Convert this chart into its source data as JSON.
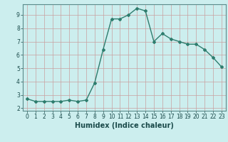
{
  "x": [
    0,
    1,
    2,
    3,
    4,
    5,
    6,
    7,
    8,
    9,
    10,
    11,
    12,
    13,
    14,
    15,
    16,
    17,
    18,
    19,
    20,
    21,
    22,
    23
  ],
  "y": [
    2.7,
    2.5,
    2.5,
    2.5,
    2.5,
    2.6,
    2.5,
    2.6,
    3.9,
    6.4,
    8.7,
    8.7,
    9.0,
    9.5,
    9.3,
    7.0,
    7.6,
    7.2,
    7.0,
    6.8,
    6.8,
    6.4,
    5.8,
    5.1
  ],
  "line_color": "#2e7d6e",
  "marker": "D",
  "markersize": 2.0,
  "linewidth": 1.0,
  "xlabel": "Humidex (Indice chaleur)",
  "xlim": [
    -0.5,
    23.5
  ],
  "ylim": [
    1.8,
    9.8
  ],
  "yticks": [
    2,
    3,
    4,
    5,
    6,
    7,
    8,
    9
  ],
  "xticks": [
    0,
    1,
    2,
    3,
    4,
    5,
    6,
    7,
    8,
    9,
    10,
    11,
    12,
    13,
    14,
    15,
    16,
    17,
    18,
    19,
    20,
    21,
    22,
    23
  ],
  "bg_color": "#cceeee",
  "grid_color_major": "#b8d4d4",
  "grid_color_minor": "#dde8e8",
  "tick_fontsize": 5.5,
  "xlabel_fontsize": 7
}
